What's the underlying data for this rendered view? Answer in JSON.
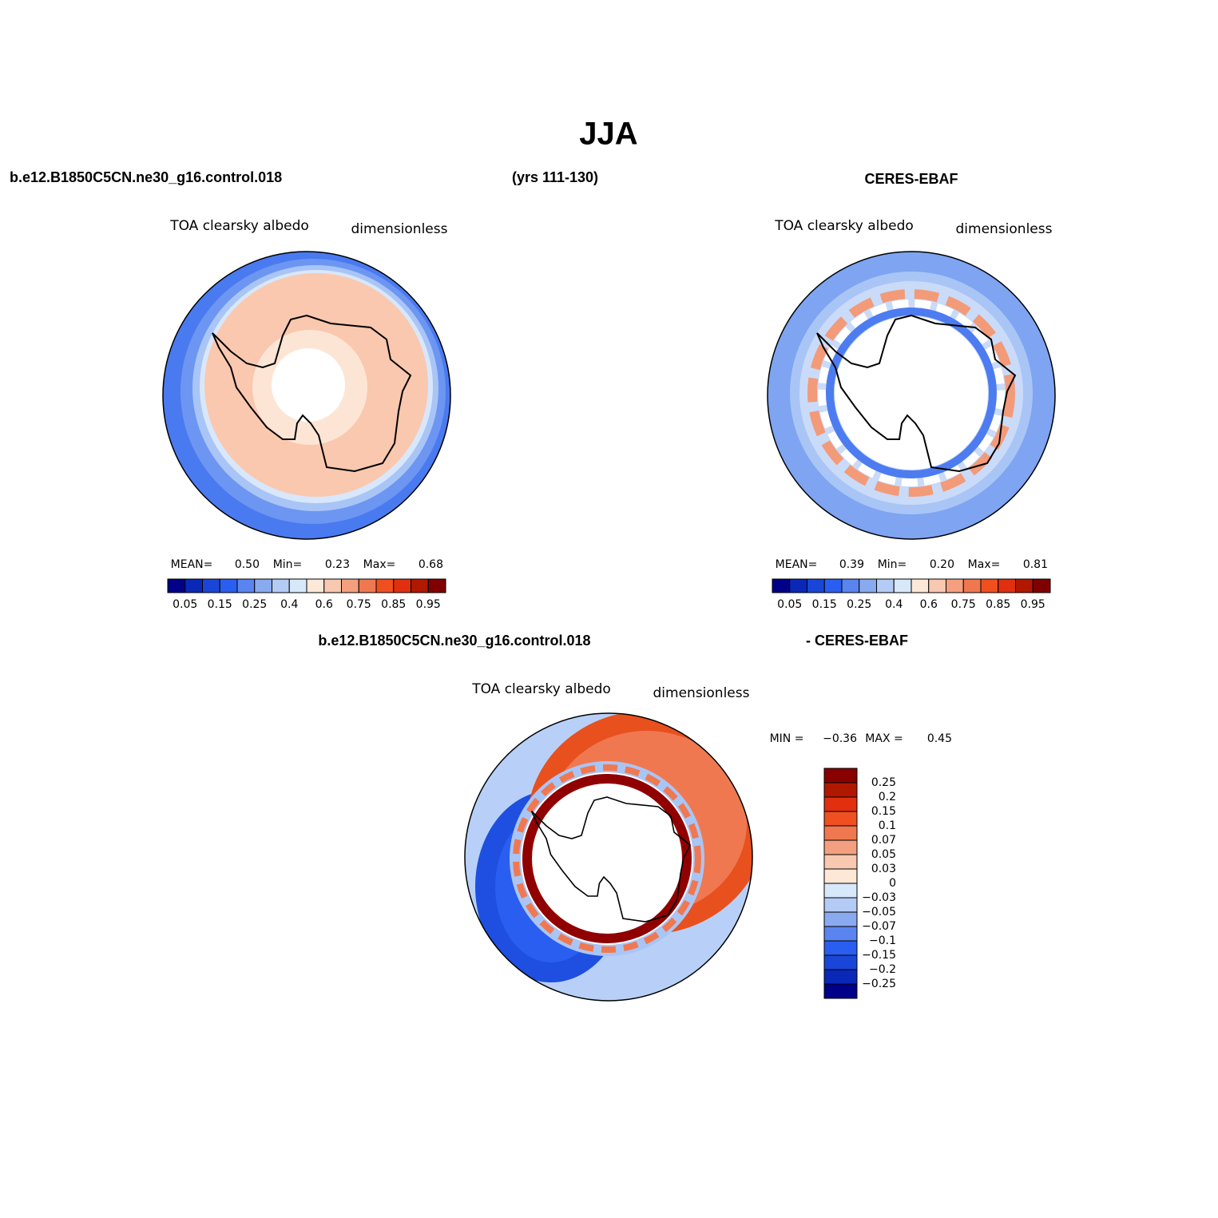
{
  "title": "JJA",
  "case_name": "b.e12.B1850C5CN.ne30_g16.control.018",
  "years": "(yrs 111-130)",
  "obs_name": "CERES-EBAF",
  "panels": [
    {
      "variable": "TOA clearsky albedo",
      "units": "dimensionless",
      "stats": [
        {
          "label": "MEAN=",
          "value": "0.50"
        },
        {
          "label": "Min=",
          "value": "0.23"
        },
        {
          "label": "Max=",
          "value": "0.68"
        }
      ]
    },
    {
      "variable": "TOA clearsky albedo",
      "units": "dimensionless",
      "stats": [
        {
          "label": "MEAN=",
          "value": "0.39"
        },
        {
          "label": "Min=",
          "value": "0.20"
        },
        {
          "label": "Max=",
          "value": "0.81"
        }
      ]
    }
  ],
  "colorbar": {
    "colors": [
      "#000088",
      "#0a28b8",
      "#1a46d8",
      "#2a5ef0",
      "#5a84f0",
      "#8aaaf0",
      "#b4cbf5",
      "#d8e8fb",
      "#fde8d8",
      "#f8c8b0",
      "#f4a080",
      "#f07850",
      "#f05020",
      "#e03010",
      "#b01800",
      "#800000"
    ],
    "labels": [
      "0.05",
      "0.15",
      "0.25",
      "0.4",
      "0.6",
      "0.75",
      "0.85",
      "0.95"
    ]
  },
  "diff": {
    "case_name": "b.e12.B1850C5CN.ne30_g16.control.018",
    "obs_name": "- CERES-EBAF",
    "variable": "TOA clearsky albedo",
    "units": "dimensionless",
    "stats": [
      {
        "label": "MIN =",
        "value": "−0.36"
      },
      {
        "label": "MAX =",
        "value": "0.45"
      }
    ],
    "colorbar": {
      "colors": [
        "#880000",
        "#b01800",
        "#e03010",
        "#f05020",
        "#f07850",
        "#f4a080",
        "#f8c8b0",
        "#fde8d8",
        "#d8e8fb",
        "#b4cbf5",
        "#8aaaf0",
        "#5a84f0",
        "#2a5ef0",
        "#1a46d8",
        "#0a28b8",
        "#000088"
      ],
      "labels": [
        "0.25",
        "0.2",
        "0.15",
        "0.1",
        "0.07",
        "0.05",
        "0.03",
        "0",
        "−0.03",
        "−0.05",
        "−0.07",
        "−0.1",
        "−0.15",
        "−0.2",
        "−0.25"
      ]
    }
  }
}
